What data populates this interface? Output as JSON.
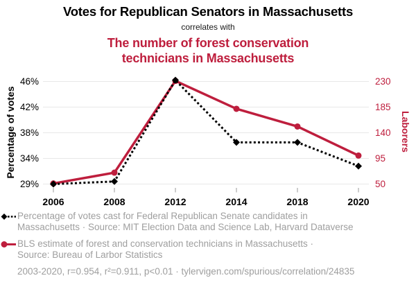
{
  "colors": {
    "accent_red": "#be1e3d",
    "series_black": "#000000",
    "legend_gray": "#9e9e9e",
    "gridline_gray": "#e8e8e8",
    "tick_gray": "#999999"
  },
  "chart_data": {
    "type": "line",
    "title": "Votes for Republican Senators in Massachusetts",
    "connector_text": "correlates with",
    "subtitle": "The number of forest conservation technicians in Massachusetts",
    "categories": [
      "2006",
      "2008",
      "2012",
      "2014",
      "2018",
      "2020"
    ],
    "series": [
      {
        "name": "Percentage of votes cast for Federal Republican Senate candidates in Massachusetts",
        "axis": "left",
        "color": "#000000",
        "line_style": "dashed",
        "marker": "diamond",
        "values": [
          29.0,
          29.5,
          46.2,
          36.5,
          36.5,
          32.5
        ]
      },
      {
        "name": "BLS estimate of forest and conservation technicians in Massachusetts",
        "axis": "right",
        "color": "#be1e3d",
        "line_style": "solid",
        "marker": "circle",
        "values": [
          51,
          70,
          231,
          182,
          151,
          100
        ]
      }
    ],
    "left_axis": {
      "label": "Percentage of votes",
      "ticks": [
        "46%",
        "42%",
        "38%",
        "34%",
        "29%"
      ],
      "tick_values": [
        46,
        42,
        38,
        34,
        29
      ]
    },
    "right_axis": {
      "label": "Laborers",
      "ticks": [
        "230",
        "185",
        "140",
        "95",
        "50"
      ],
      "tick_values": [
        230,
        185,
        140,
        95,
        50
      ]
    },
    "grid": "horizontal",
    "legend_position": "bottom",
    "legend": [
      {
        "marker": "black-diamond-dashed",
        "line1": "Percentage of votes cast for Federal Republican Senate candidates in",
        "line2": "Massachusetts · Source: MIT Election Data and Science Lab, Harvard Dataverse"
      },
      {
        "marker": "red-circle-solid",
        "line1": "BLS estimate of forest and conservation technicians in Massachusetts ·",
        "line2": "Source: Bureau of Larbor Statistics"
      }
    ],
    "footnote": "2003-2020, r=0.954, r²=0.911, p<0.01 · tylervigen.com/spurious/correlation/24835"
  }
}
